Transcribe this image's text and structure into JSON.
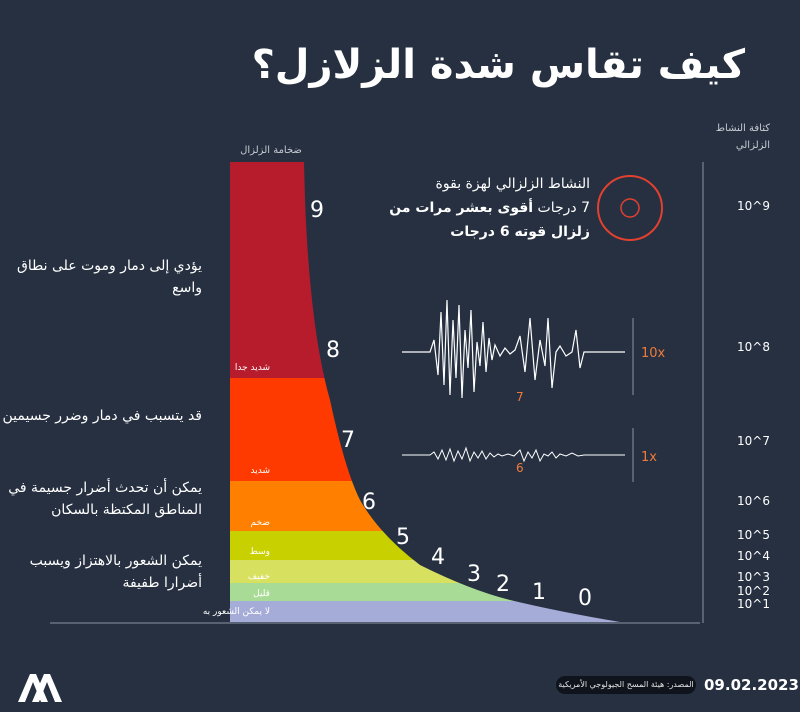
{
  "title": "كيف تقاس شدة الزلازل؟",
  "axes": {
    "magnitude_caption": "ضخامة الزلزال",
    "energy_caption": "كثافة النشاط الزلزالي"
  },
  "info_text": {
    "line1": "النشاط الزلزالي لهزة بقوة",
    "line2_pre": "7 درجات ",
    "line2_bold": "أقوى بعشر مرات من",
    "line3": "زلزال قوته 6 درجات"
  },
  "descriptions": [
    {
      "text": "يؤدي إلى دمار وموت على نطاق واسع"
    },
    {
      "text": "قد يتسبب في دمار وضرر جسيمين"
    },
    {
      "text": "يمكن أن تحدث أضرار جسيمة في المناطق المكتظة بالسكان"
    },
    {
      "text": "يمكن الشعور بالاهتزاز ويسبب أضرارا طفيفة"
    }
  ],
  "levels": [
    {
      "label": "شديد جدا",
      "color": "#b71c2c"
    },
    {
      "label": "شديد",
      "color": "#ff3a00"
    },
    {
      "label": "ضخم",
      "color": "#ff8000"
    },
    {
      "label": "وسط",
      "color": "#c8d000"
    },
    {
      "label": "خفيف",
      "color": "#d8e060"
    },
    {
      "label": "قليل",
      "color": "#a8dc96"
    },
    {
      "label": "لا يمكن الشعور به",
      "color": "#a6acd8"
    }
  ],
  "magnitudes": [
    "9",
    "8",
    "7",
    "6",
    "5",
    "4",
    "3",
    "2",
    "1",
    "0"
  ],
  "energy_exponents": [
    "10^9",
    "10^8",
    "10^7",
    "10^6",
    "10^5",
    "10^4",
    "10^3",
    "10^2",
    "10^1"
  ],
  "waves": [
    {
      "label": "7",
      "factor": "10x"
    },
    {
      "label": "6",
      "factor": "1x"
    }
  ],
  "footer": {
    "date": "09.02.2023",
    "source": "المصدر: هيئة المسح الجيولوجي الأمريكية",
    "logo_text": "AA"
  },
  "colors": {
    "background": "#263041",
    "accent": "#f07a3a",
    "circle": "#e0412f"
  }
}
